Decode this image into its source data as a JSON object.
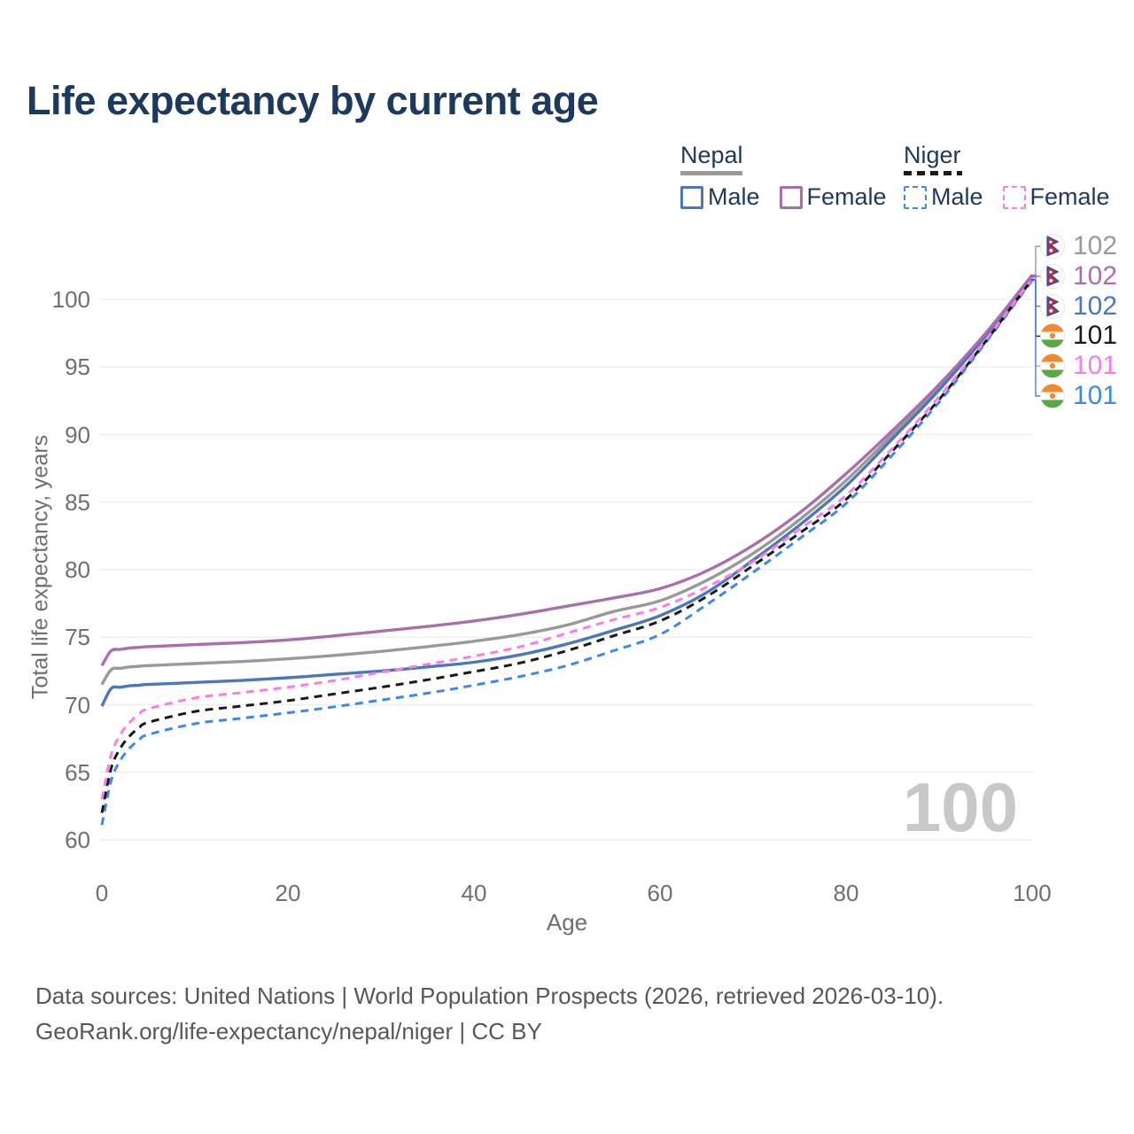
{
  "title": "Life expectancy by current age",
  "watermark": "100",
  "colors": {
    "title_text": "#1c3a5e",
    "legend_text": "#1d3a5e",
    "axis_text": "#6f6f6f",
    "grid": "#ebebeb",
    "watermark": "#c8c8c8",
    "footer_text": "#575757",
    "nepal_male": "#4c77b8",
    "nepal_female": "#a96fad",
    "nepal_both": "#999999",
    "niger_male": "#3d87f0",
    "niger_female": "#fb7ce8",
    "niger_both": "#1a1a1a"
  },
  "legend": {
    "groups": [
      {
        "name": "Nepal",
        "line_style": "solid",
        "underline_color": "#9a9a9a",
        "items": [
          {
            "label": "Male",
            "series": "nepal_male"
          },
          {
            "label": "Female",
            "series": "nepal_female"
          }
        ]
      },
      {
        "name": "Niger",
        "line_style": "dashed",
        "underline_color": "#1a1a1a",
        "items": [
          {
            "label": "Male",
            "series": "niger_male"
          },
          {
            "label": "Female",
            "series": "niger_female"
          }
        ]
      }
    ]
  },
  "end_labels": [
    {
      "value": "102",
      "series": "nepal_both",
      "flag": "nepal",
      "color": "#999999"
    },
    {
      "value": "102",
      "series": "nepal_female",
      "flag": "nepal",
      "color": "#a96fad"
    },
    {
      "value": "102",
      "series": "nepal_male",
      "flag": "nepal",
      "color": "#4c77b8"
    },
    {
      "value": "101",
      "series": "niger_both",
      "flag": "niger",
      "color": "#1a1a1a"
    },
    {
      "value": "101",
      "series": "niger_female",
      "flag": "niger",
      "color": "#fb7ce8"
    },
    {
      "value": "101",
      "series": "niger_male",
      "flag": "niger",
      "color": "#3d87f0"
    }
  ],
  "chart_data": {
    "type": "line",
    "title": "Life expectancy by current age",
    "xlabel": "Age",
    "ylabel": "Total life expectancy, years",
    "xlim": [
      0,
      100
    ],
    "ylim": [
      60,
      102.5
    ],
    "x_ticks": [
      0,
      20,
      40,
      60,
      80,
      100
    ],
    "y_ticks": [
      60,
      65,
      70,
      75,
      80,
      85,
      90,
      95,
      100
    ],
    "grid": "horizontal",
    "legend_position": "top-right",
    "x": [
      0,
      1,
      2,
      3,
      4,
      5,
      10,
      15,
      20,
      25,
      30,
      35,
      40,
      45,
      50,
      55,
      60,
      65,
      70,
      75,
      80,
      85,
      90,
      95,
      100
    ],
    "series": [
      {
        "key": "nepal_male",
        "name": "Nepal Male",
        "country": "Nepal",
        "sex": "Male",
        "color": "#4c77b8",
        "dash": "solid",
        "values": [
          69.9,
          71.2,
          71.3,
          71.4,
          71.45,
          71.5,
          71.65,
          71.8,
          72.0,
          72.25,
          72.5,
          72.8,
          73.15,
          73.7,
          74.5,
          75.5,
          76.6,
          78.3,
          80.7,
          83.3,
          86.2,
          89.7,
          93.3,
          97.3,
          101.7
        ]
      },
      {
        "key": "nepal_female",
        "name": "Nepal Female",
        "country": "Nepal",
        "sex": "Female",
        "color": "#a96fad",
        "dash": "solid",
        "values": [
          72.9,
          74.0,
          74.1,
          74.2,
          74.25,
          74.3,
          74.45,
          74.6,
          74.8,
          75.1,
          75.45,
          75.8,
          76.2,
          76.7,
          77.3,
          77.9,
          78.6,
          79.9,
          81.8,
          84.2,
          87.1,
          90.3,
          93.7,
          97.5,
          101.8
        ]
      },
      {
        "key": "nepal_both",
        "name": "Nepal Both sexes",
        "country": "Nepal",
        "sex": "Both",
        "color": "#999999",
        "dash": "solid",
        "values": [
          71.5,
          72.6,
          72.7,
          72.8,
          72.85,
          72.9,
          73.05,
          73.2,
          73.4,
          73.65,
          73.95,
          74.3,
          74.7,
          75.2,
          75.9,
          76.9,
          77.7,
          79.2,
          81.2,
          83.7,
          86.6,
          90.0,
          93.5,
          97.4,
          101.75
        ]
      },
      {
        "key": "niger_male",
        "name": "Niger Male",
        "country": "Niger",
        "sex": "Male",
        "color": "#3d87f0",
        "dash": "dashed",
        "values": [
          61.1,
          64.4,
          65.9,
          66.8,
          67.4,
          67.8,
          68.6,
          69.0,
          69.4,
          69.85,
          70.35,
          70.85,
          71.45,
          72.1,
          72.9,
          74.0,
          75.2,
          77.4,
          79.8,
          82.3,
          84.9,
          88.5,
          92.4,
          96.8,
          101.4
        ]
      },
      {
        "key": "niger_female",
        "name": "Niger Female",
        "country": "Niger",
        "sex": "Female",
        "color": "#fb7ce8",
        "dash": "dashed",
        "values": [
          63.0,
          66.3,
          67.8,
          68.7,
          69.3,
          69.7,
          70.5,
          70.9,
          71.3,
          71.8,
          72.4,
          73.0,
          73.6,
          74.3,
          75.3,
          76.3,
          77.2,
          78.7,
          80.6,
          83.0,
          85.5,
          89.0,
          92.8,
          97.0,
          101.55
        ]
      },
      {
        "key": "niger_both",
        "name": "Niger Both sexes",
        "country": "Niger",
        "sex": "Both",
        "color": "#1a1a1a",
        "dash": "dashed",
        "values": [
          62.0,
          65.3,
          66.8,
          67.7,
          68.3,
          68.7,
          69.5,
          69.9,
          70.3,
          70.8,
          71.3,
          71.85,
          72.45,
          73.1,
          74.0,
          75.1,
          76.2,
          78.0,
          80.3,
          82.7,
          85.2,
          88.8,
          92.6,
          96.9,
          101.5
        ]
      }
    ]
  },
  "footer": {
    "line1": "Data sources: United Nations | World Population Prospects (2026, retrieved 2026-03-10).",
    "line2": "GeoRank.org/life-expectancy/nepal/niger | CC BY"
  }
}
